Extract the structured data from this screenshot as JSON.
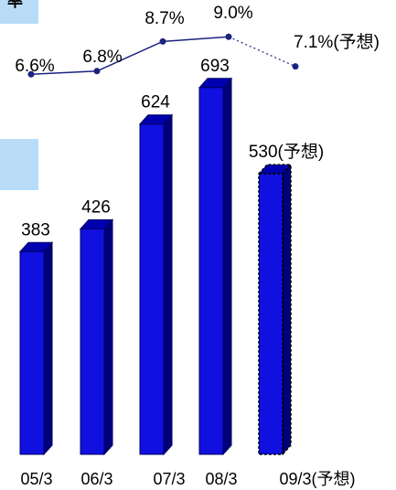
{
  "legend_boxes": [
    {
      "label": "率",
      "color": "#b8dcf8"
    },
    {
      "label": "",
      "color": "#b8dcf8"
    }
  ],
  "chart_data": {
    "type": "bar",
    "categories": [
      "05/3",
      "06/3",
      "07/3",
      "08/3",
      "09/3(予想)"
    ],
    "values": [
      383,
      426,
      624,
      693,
      530
    ],
    "value_labels": [
      "383",
      "426",
      "624",
      "693",
      "530(予想)"
    ],
    "forecast": [
      false,
      false,
      false,
      false,
      true
    ],
    "bar_color": "#1010e0",
    "ylim": [
      0,
      760
    ],
    "line": {
      "values": [
        6.6,
        6.8,
        8.7,
        9.0,
        7.1
      ],
      "labels": [
        "6.6%",
        "6.8%",
        "8.7%",
        "9.0%",
        "7.1%(予想)"
      ],
      "color": "#1a237e",
      "ylim": [
        5.5,
        9.6
      ]
    }
  }
}
